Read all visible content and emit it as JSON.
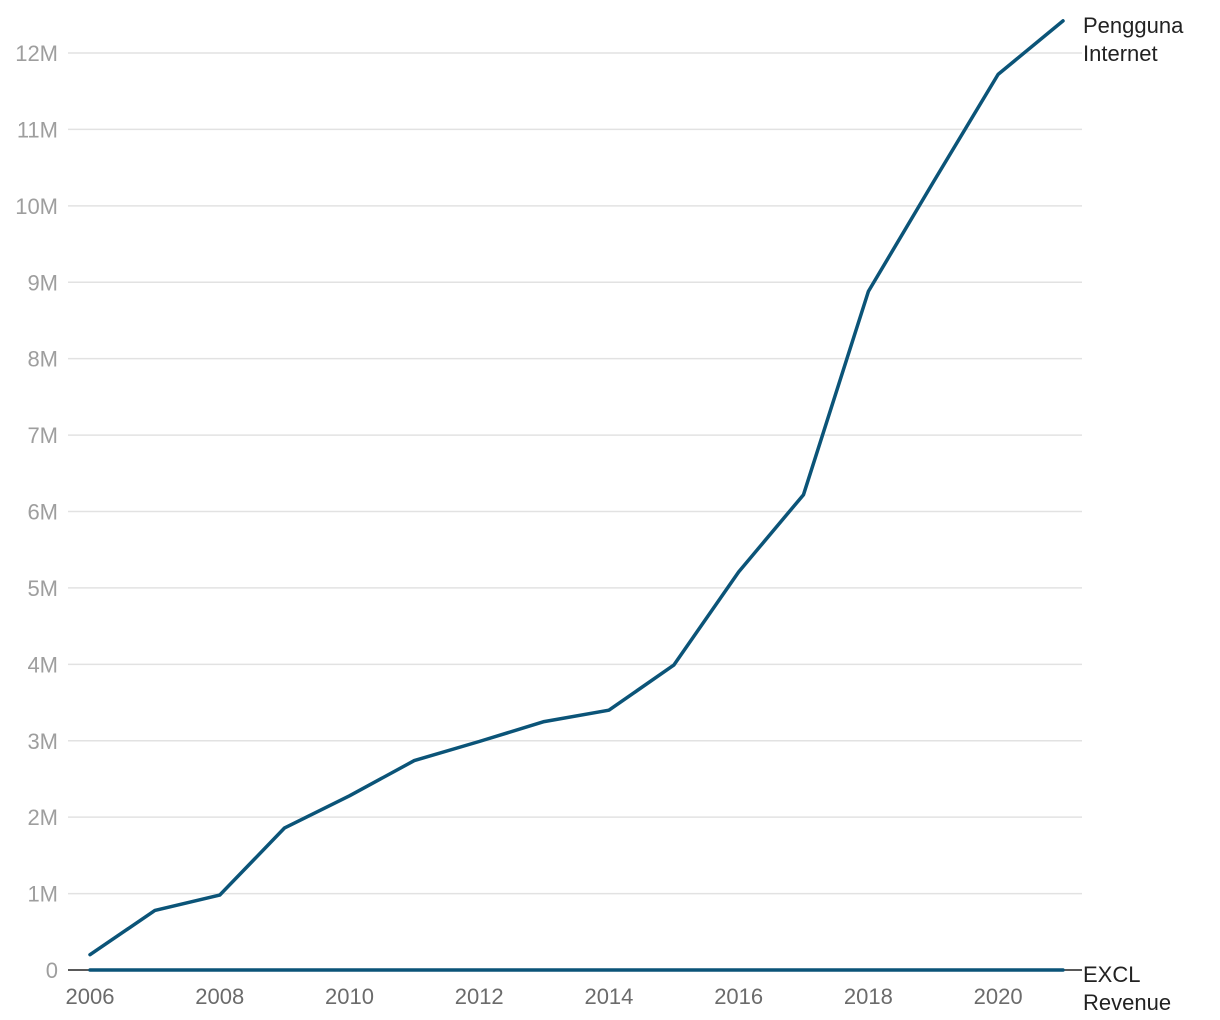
{
  "chart_data": {
    "type": "line",
    "title": "",
    "xlabel": "",
    "ylabel": "",
    "x": [
      2006,
      2007,
      2008,
      2009,
      2010,
      2011,
      2012,
      2013,
      2014,
      2015,
      2016,
      2017,
      2018,
      2019,
      2020,
      2021
    ],
    "x_ticks": [
      "2006",
      "2008",
      "2010",
      "2012",
      "2014",
      "2016",
      "2018",
      "2020"
    ],
    "y_ticks": [
      "0",
      "1M",
      "2M",
      "3M",
      "4M",
      "5M",
      "6M",
      "7M",
      "8M",
      "9M",
      "10M",
      "11M",
      "12M"
    ],
    "xlim": [
      2006,
      2021
    ],
    "ylim": [
      0,
      12000000
    ],
    "grid": true,
    "legend": "inline labels at line ends (right)",
    "series": [
      {
        "name": "Pengguna Internet",
        "label_lines": [
          "Pengguna",
          "Internet"
        ],
        "color": "#0b5478",
        "values": [
          200000,
          780000,
          980000,
          1860000,
          2280000,
          2740000,
          2990000,
          3250000,
          3400000,
          3990000,
          5210000,
          6220000,
          8880000,
          10310000,
          11720000,
          12420000
        ]
      },
      {
        "name": "EXCL Revenue",
        "label_lines": [
          "EXCL",
          "Revenue"
        ],
        "color": "#0b5478",
        "values": [
          0,
          0,
          0,
          0,
          0,
          0,
          0,
          0,
          0,
          0,
          0,
          0,
          0,
          0,
          0,
          0
        ]
      }
    ]
  }
}
